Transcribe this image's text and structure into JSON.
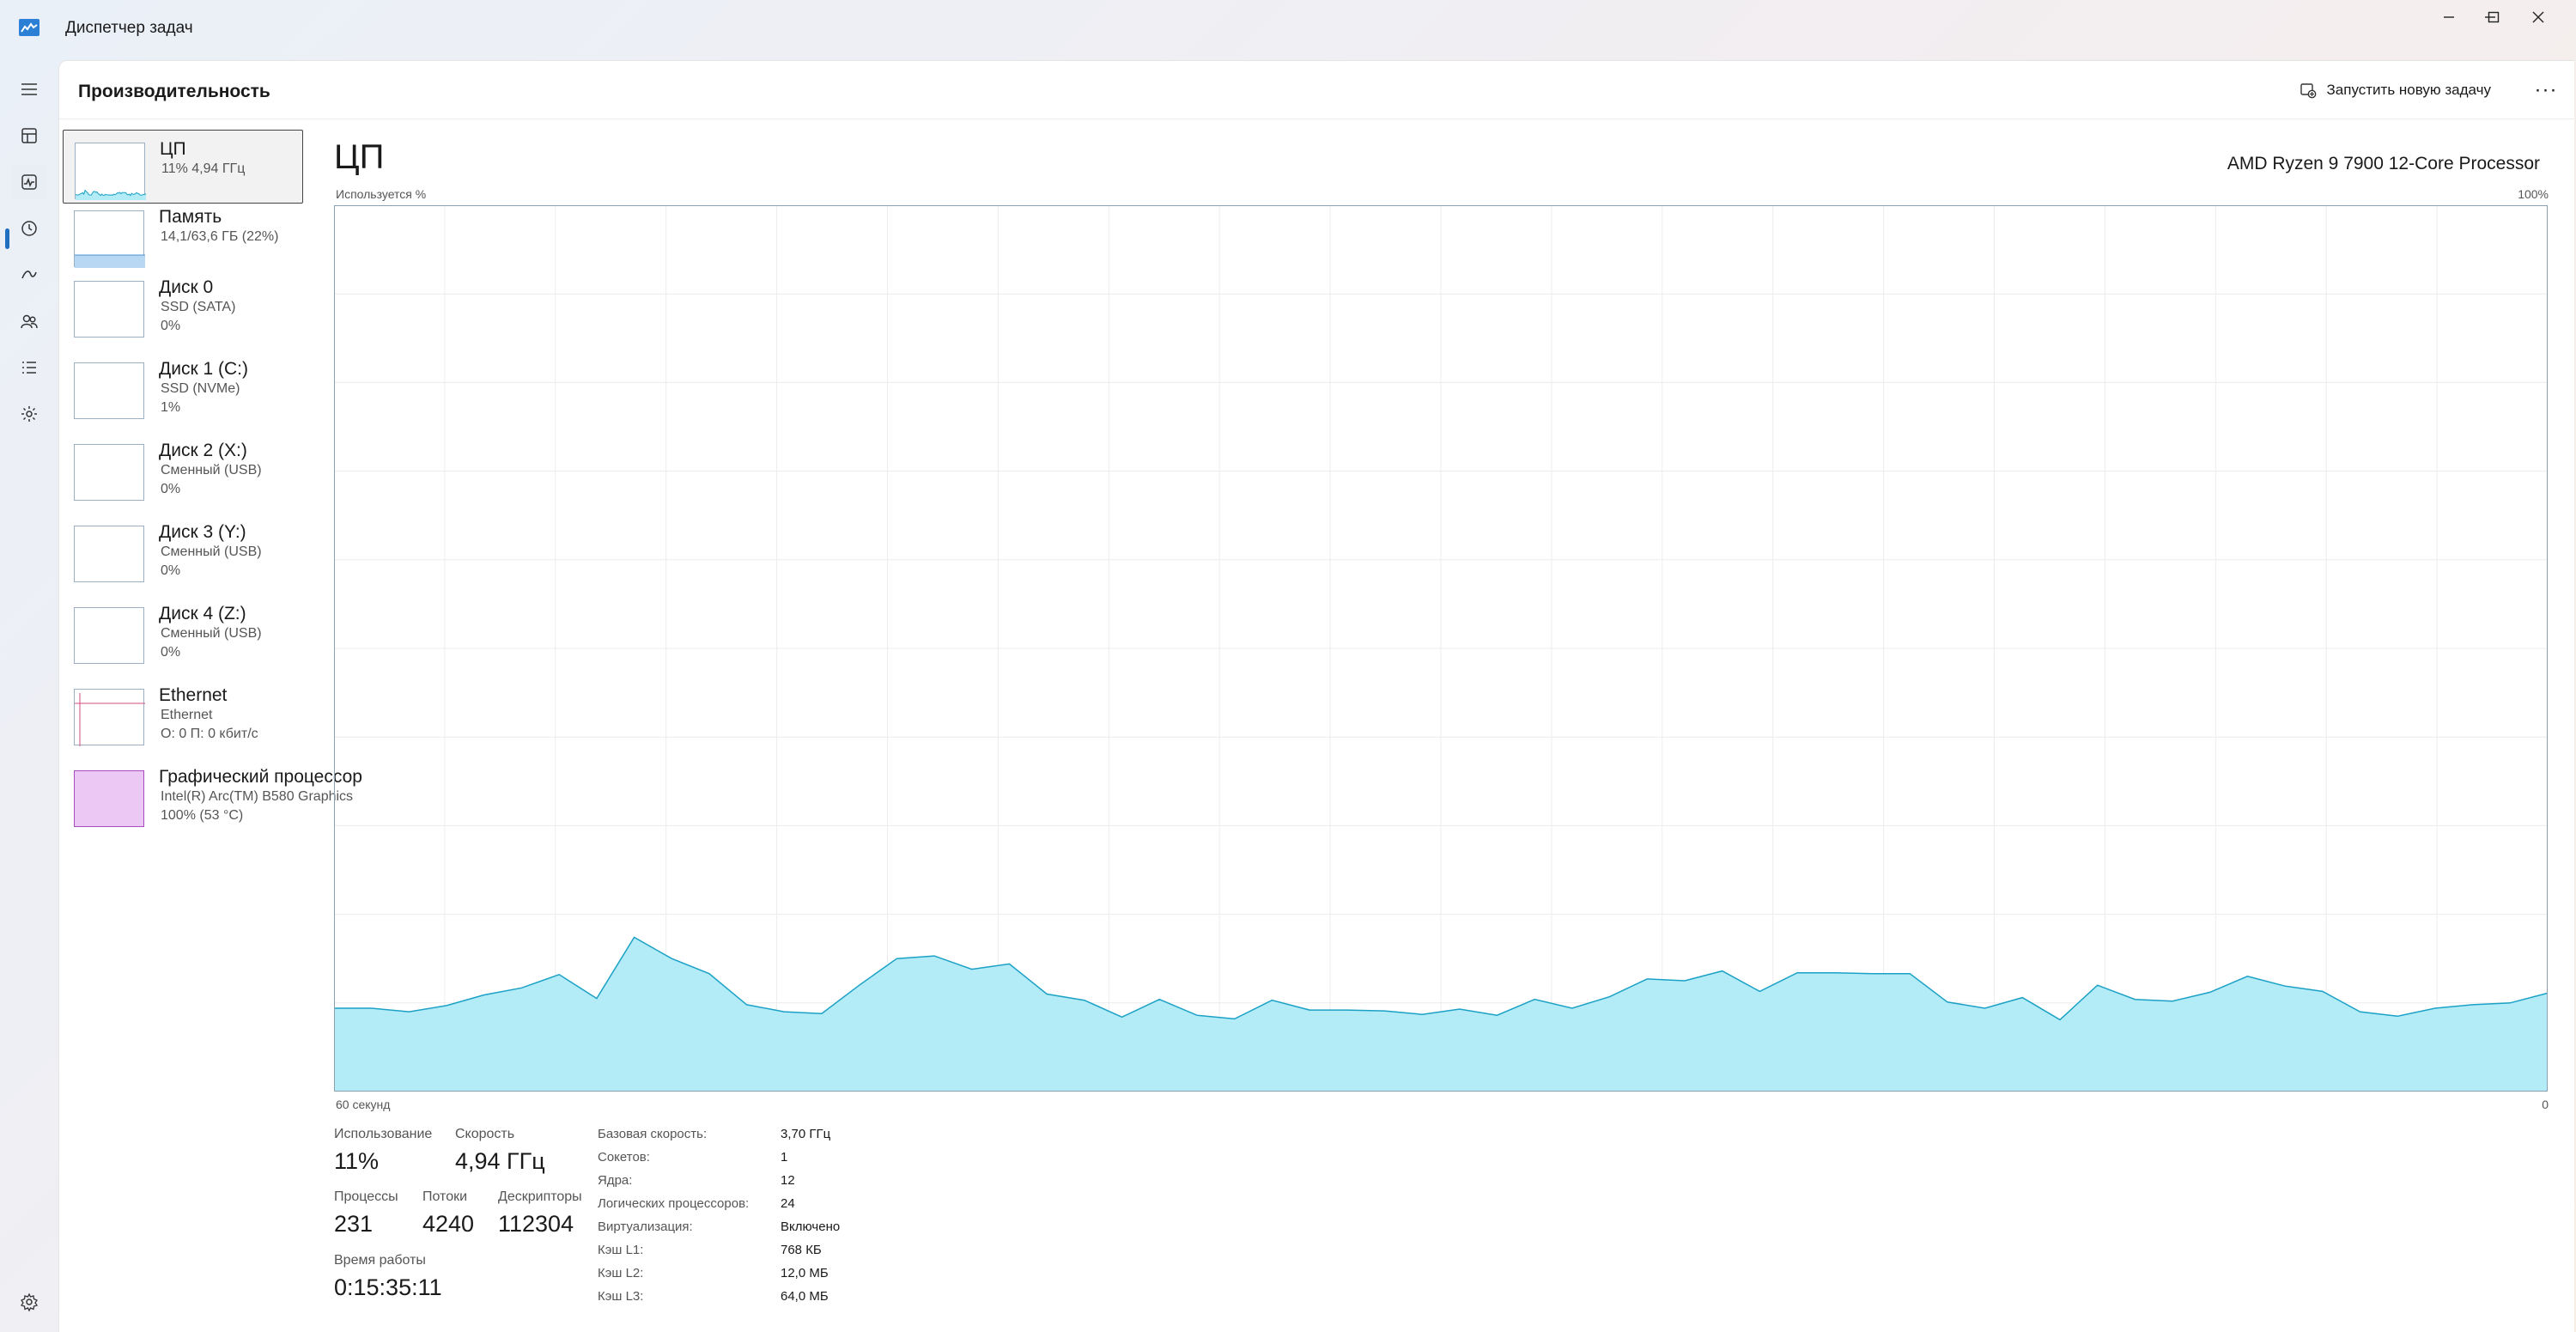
{
  "window": {
    "title": "Диспетчер задач",
    "controls": {
      "minimize": "minimize-icon",
      "maximize": "maximize-icon",
      "close": "close-icon"
    }
  },
  "nav": {
    "items": [
      {
        "name": "hamburger-icon"
      },
      {
        "name": "processes-icon"
      },
      {
        "name": "performance-icon",
        "active": true
      },
      {
        "name": "app-history-icon"
      },
      {
        "name": "startup-apps-icon"
      },
      {
        "name": "users-icon"
      },
      {
        "name": "details-icon"
      },
      {
        "name": "services-icon"
      }
    ],
    "settings": "settings-icon"
  },
  "header": {
    "title": "Производительность",
    "run_task_label": "Запустить новую задачу",
    "more_label": "···"
  },
  "resources": [
    {
      "name": "ЦП",
      "line1": "11%  4,94 ГГц",
      "line2": "",
      "selected": true,
      "graph": "cpu"
    },
    {
      "name": "Память",
      "line1": "14,1/63,6 ГБ (22%)",
      "line2": "",
      "graph": "memory"
    },
    {
      "name": "Диск 0",
      "line1": "SSD (SATA)",
      "line2": "0%",
      "graph": "empty"
    },
    {
      "name": "Диск 1 (C:)",
      "line1": "SSD (NVMe)",
      "line2": "1%",
      "graph": "empty"
    },
    {
      "name": "Диск 2 (X:)",
      "line1": "Сменный (USB)",
      "line2": "0%",
      "graph": "empty"
    },
    {
      "name": "Диск 3 (Y:)",
      "line1": "Сменный (USB)",
      "line2": "0%",
      "graph": "empty"
    },
    {
      "name": "Диск 4 (Z:)",
      "line1": "Сменный (USB)",
      "line2": "0%",
      "graph": "empty"
    },
    {
      "name": "Ethernet",
      "line1": "Ethernet",
      "line2": "О: 0  П: 0 кбит/с",
      "graph": "ethernet"
    },
    {
      "name": "Графический процессор",
      "line1": "Intel(R) Arc(TM) B580 Graphics",
      "line2": "100%  (53 °C)",
      "graph": "gpu"
    }
  ],
  "detail": {
    "title": "ЦП",
    "model": "AMD Ryzen 9 7900 12-Core Processor",
    "axis_top_left": "Используется %",
    "axis_top_right": "100%",
    "axis_bottom_left": "60 секунд",
    "axis_bottom_right": "0"
  },
  "stats": {
    "usage_label": "Использование",
    "usage_value": "11%",
    "speed_label": "Скорость",
    "speed_value": "4,94 ГГц",
    "processes_label": "Процессы",
    "processes_value": "231",
    "threads_label": "Потоки",
    "threads_value": "4240",
    "handles_label": "Дескрипторы",
    "handles_value": "112304",
    "uptime_label": "Время работы",
    "uptime_value": "0:15:35:11"
  },
  "specs": [
    {
      "label": "Базовая скорость:",
      "value": "3,70 ГГц"
    },
    {
      "label": "Сокетов:",
      "value": "1"
    },
    {
      "label": "Ядра:",
      "value": "12"
    },
    {
      "label": "Логических процессоров:",
      "value": "24"
    },
    {
      "label": "Виртуализация:",
      "value": "Включено"
    },
    {
      "label": "Кэш L1:",
      "value": "768 КБ"
    },
    {
      "label": "Кэш L2:",
      "value": "12,0 МБ"
    },
    {
      "label": "Кэш L3:",
      "value": "64,0 МБ"
    }
  ],
  "colors": {
    "cpu_line": "#1ba1c6",
    "cpu_fill": "#b3ebf7",
    "grid": "#ececec",
    "memory_fill": "#b7d7f3",
    "gpu_fill": "#ecc8f5",
    "gpu_border": "#a64bc0",
    "ethernet_line": "#d44c7c",
    "accent": "#1f6fbf"
  },
  "chart_data": {
    "type": "area",
    "ylim": [
      0,
      100
    ],
    "x_range_seconds": [
      60,
      0
    ],
    "values": [
      9.4,
      9.4,
      9.0,
      9.7,
      10.9,
      11.7,
      13.2,
      10.5,
      17.4,
      15.0,
      13.3,
      9.8,
      9.0,
      8.8,
      12.0,
      15.0,
      15.3,
      13.8,
      14.4,
      11.0,
      10.3,
      8.4,
      10.4,
      8.6,
      8.2,
      10.3,
      9.2,
      9.2,
      9.1,
      8.7,
      9.3,
      8.6,
      10.4,
      9.4,
      10.7,
      12.7,
      12.5,
      13.6,
      11.3,
      13.4,
      13.4,
      13.3,
      13.3,
      10.1,
      9.4,
      10.6,
      8.1,
      12.0,
      10.4,
      10.2,
      11.2,
      13.0,
      11.9,
      11.3,
      9.0,
      8.5,
      9.4,
      9.8,
      10.0,
      11.1
    ]
  }
}
